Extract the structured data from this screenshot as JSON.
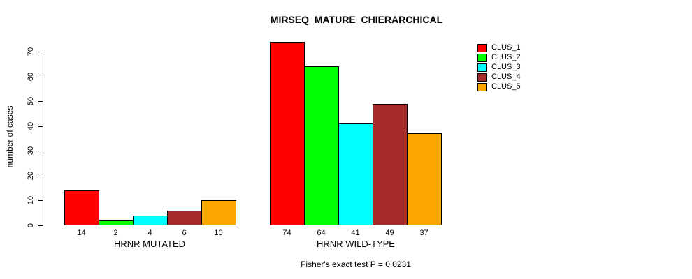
{
  "page": {
    "background": "#ffffff"
  },
  "chart_data": {
    "type": "bar",
    "title": "MIRSEQ_MATURE_CHIERARCHICAL",
    "ylabel": "number of cases",
    "xlabel": "",
    "ylim": [
      0,
      70
    ],
    "yticks": [
      0,
      10,
      20,
      30,
      40,
      50,
      60,
      70
    ],
    "grid": false,
    "legend_position": "top-right",
    "bar_value_labels": true,
    "categories": [
      "HRNR MUTATED",
      "HRNR WILD-TYPE"
    ],
    "series": [
      {
        "name": "CLUS_1",
        "color": "#ff0000",
        "values": [
          14,
          74
        ]
      },
      {
        "name": "CLUS_2",
        "color": "#00ff00",
        "values": [
          2,
          64
        ]
      },
      {
        "name": "CLUS_3",
        "color": "#00ffff",
        "values": [
          4,
          41
        ]
      },
      {
        "name": "CLUS_4",
        "color": "#a52a2a",
        "values": [
          6,
          49
        ]
      },
      {
        "name": "CLUS_5",
        "color": "#ffa500",
        "values": [
          10,
          37
        ]
      }
    ],
    "footer": "Fisher's exact test P = 0.0231"
  }
}
